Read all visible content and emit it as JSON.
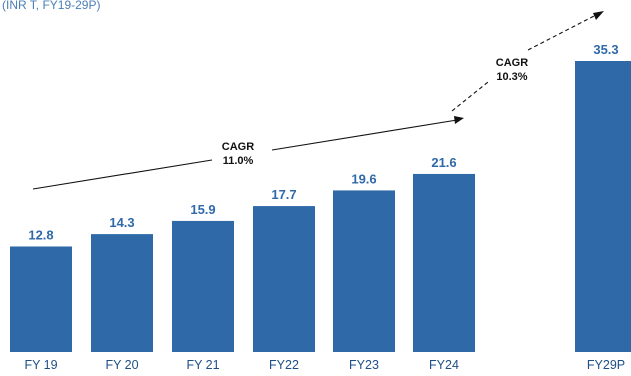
{
  "subtitle": "(INR T, FY19-29P)",
  "colors": {
    "bar": "#2f69a8",
    "value_label": "#2f69a8",
    "axis_label": "#1f4f85",
    "arrow": "#111111"
  },
  "chart_data": {
    "type": "bar",
    "title": "",
    "subtitle": "(INR T, FY19-29P)",
    "categories": [
      "FY 19",
      "FY 20",
      "FY 21",
      "FY22",
      "FY23",
      "FY24",
      "FY29P"
    ],
    "values": [
      12.8,
      14.3,
      15.9,
      17.7,
      19.6,
      21.6,
      35.3
    ],
    "data_labels": [
      "12.8",
      "14.3",
      "15.9",
      "17.7",
      "19.6",
      "21.6",
      "35.3"
    ],
    "xlabel": "",
    "ylabel": "",
    "ylim": [
      0,
      35.3
    ],
    "grid": false,
    "annotations": [
      {
        "label": "CAGR",
        "value": "11.0%",
        "from": "FY 19",
        "to": "FY24"
      },
      {
        "label": "CAGR",
        "value": "10.3%",
        "from": "FY24",
        "to": "FY29P"
      }
    ]
  }
}
